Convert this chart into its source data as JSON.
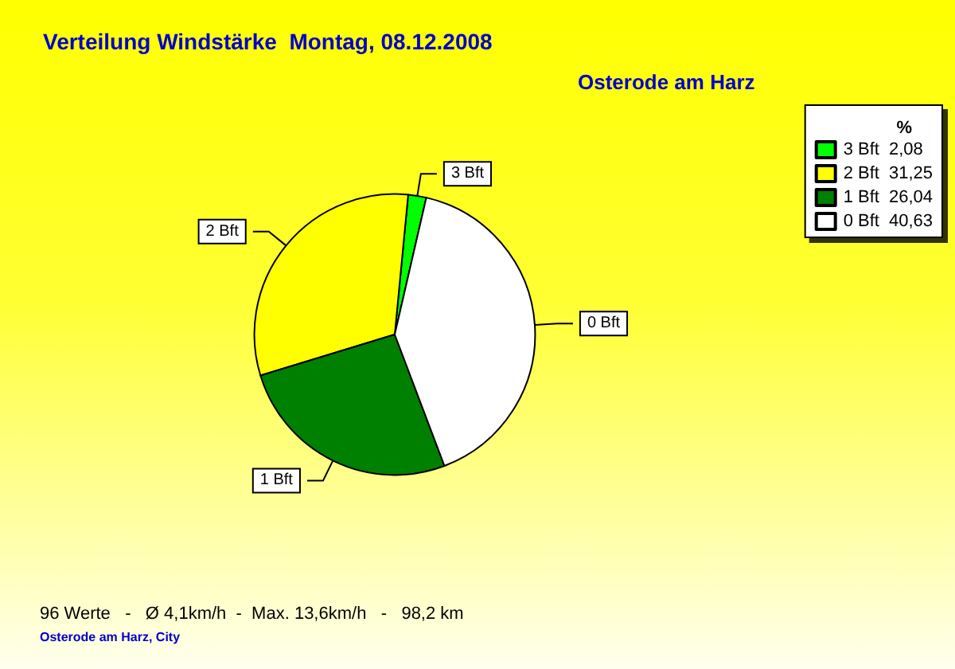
{
  "chart_data": {
    "type": "pie",
    "title": "Verteilung Windstärke  Montag, 08.12.2008",
    "subtitle": "Osterode am Harz",
    "categories": [
      "3 Bft",
      "2 Bft",
      "1 Bft",
      "0 Bft"
    ],
    "values": [
      2.08,
      31.25,
      26.04,
      40.63
    ],
    "value_labels": [
      "2,08",
      "31,25",
      "26,04",
      "40,63"
    ],
    "colors": [
      "#00ff00",
      "#ffff00",
      "#008000",
      "#ffffff"
    ],
    "legend": "top right",
    "legend_title": "%",
    "annotations": [
      "96 Werte   -   Ø 4,1km/h  -  Max. 13,6km/h   -   98,2 km",
      "Osterode am Harz, City"
    ]
  }
}
